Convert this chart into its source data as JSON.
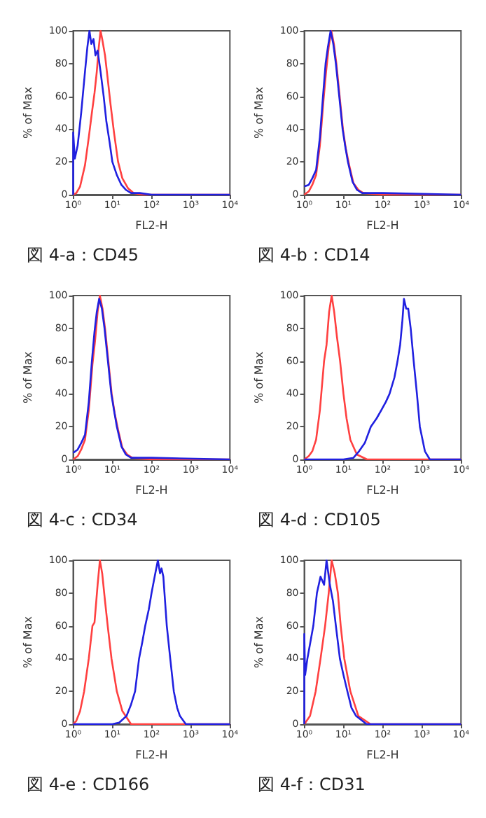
{
  "chart_data": [
    {
      "type": "line",
      "title": "図 4-a：CD45",
      "xlabel": "FL2-H",
      "ylabel": "% of Max",
      "log": "x",
      "marker": "none",
      "line_style": "solid",
      "xlim": [
        1,
        10000
      ],
      "xticks": [
        {
          "value": 1,
          "label": "10⁰"
        },
        {
          "value": 10,
          "label": "10¹"
        },
        {
          "value": 100,
          "label": "10²"
        },
        {
          "value": 1000,
          "label": "10³"
        },
        {
          "value": 10000,
          "label": "10⁴"
        }
      ],
      "ylim": [
        0,
        100
      ],
      "yticks": [
        0,
        20,
        40,
        60,
        80,
        100
      ],
      "series": [
        {
          "color": "#ff4040",
          "x": [
            1,
            1.2,
            1.5,
            2,
            2.5,
            3,
            3.5,
            4,
            4.5,
            5,
            5.5,
            6.5,
            7.5,
            9,
            11,
            14,
            18,
            25,
            35,
            60,
            10000
          ],
          "values": [
            0,
            1,
            5,
            18,
            35,
            50,
            62,
            75,
            90,
            100,
            95,
            85,
            72,
            55,
            38,
            20,
            10,
            4,
            1,
            0,
            0
          ]
        },
        {
          "color": "#2020e0",
          "x": [
            1,
            1,
            1.1,
            1.3,
            1.6,
            2,
            2.3,
            2.6,
            2.9,
            3.3,
            3.7,
            4.2,
            5,
            6,
            7,
            8.5,
            10,
            13,
            17,
            22,
            30,
            50,
            100,
            1000,
            10000
          ],
          "values": [
            0,
            38,
            22,
            30,
            50,
            75,
            90,
            100,
            92,
            95,
            85,
            88,
            75,
            60,
            45,
            32,
            20,
            12,
            6,
            3,
            1,
            1,
            0,
            0,
            0
          ]
        }
      ]
    },
    {
      "type": "line",
      "title": "図 4-b：CD14",
      "xlabel": "FL2-H",
      "ylabel": "% of Max",
      "log": "x",
      "marker": "none",
      "line_style": "solid",
      "xlim": [
        1,
        10000
      ],
      "xticks": [
        {
          "value": 1,
          "label": "10⁰"
        },
        {
          "value": 10,
          "label": "10¹"
        },
        {
          "value": 100,
          "label": "10²"
        },
        {
          "value": 1000,
          "label": "10³"
        },
        {
          "value": 10000,
          "label": "10⁴"
        }
      ],
      "ylim": [
        0,
        100
      ],
      "yticks": [
        0,
        20,
        40,
        60,
        80,
        100
      ],
      "series": [
        {
          "color": "#ff4040",
          "x": [
            1,
            1.3,
            1.6,
            2,
            2.5,
            3.1,
            3.6,
            4.2,
            4.9,
            5.7,
            6.6,
            8,
            9.7,
            11.5,
            14,
            18,
            24,
            32,
            100,
            10000
          ],
          "values": [
            0,
            2,
            6,
            12,
            30,
            58,
            75,
            90,
            100,
            92,
            80,
            60,
            40,
            28,
            18,
            7,
            3,
            1,
            0,
            0
          ]
        },
        {
          "color": "#2020e0",
          "x": [
            1,
            1.3,
            1.6,
            2,
            2.5,
            3,
            3.5,
            4,
            4.7,
            5.5,
            6.4,
            7.8,
            9.5,
            11,
            13,
            17,
            22,
            30,
            100,
            10000
          ],
          "values": [
            5,
            6,
            10,
            15,
            35,
            60,
            80,
            90,
            100,
            92,
            80,
            60,
            40,
            30,
            20,
            8,
            3,
            1,
            1,
            0
          ]
        }
      ]
    },
    {
      "type": "line",
      "title": "図 4-c：CD34",
      "xlabel": "FL2-H",
      "ylabel": "% of Max",
      "log": "x",
      "marker": "none",
      "line_style": "solid",
      "xlim": [
        1,
        10000
      ],
      "xticks": [
        {
          "value": 1,
          "label": "10⁰"
        },
        {
          "value": 10,
          "label": "10¹"
        },
        {
          "value": 100,
          "label": "10²"
        },
        {
          "value": 1000,
          "label": "10³"
        },
        {
          "value": 10000,
          "label": "10⁴"
        }
      ],
      "ylim": [
        0,
        100
      ],
      "yticks": [
        0,
        20,
        40,
        60,
        80,
        100
      ],
      "series": [
        {
          "color": "#ff4040",
          "x": [
            1,
            1.3,
            1.6,
            2,
            2.5,
            3.1,
            3.6,
            4.2,
            4.8,
            5.6,
            6.5,
            7.9,
            9.6,
            11.5,
            14,
            18,
            24,
            32,
            100,
            10000
          ],
          "values": [
            0,
            2,
            6,
            12,
            30,
            58,
            72,
            90,
            100,
            92,
            80,
            60,
            40,
            28,
            18,
            7,
            3,
            1,
            0,
            0
          ]
        },
        {
          "color": "#2020e0",
          "x": [
            1,
            1.3,
            1.6,
            2,
            2.5,
            3,
            3.5,
            4,
            4.6,
            5.4,
            6.3,
            7.7,
            9.4,
            11,
            13,
            17,
            22,
            30,
            100,
            10000
          ],
          "values": [
            4,
            6,
            10,
            15,
            35,
            60,
            78,
            90,
            98,
            92,
            80,
            60,
            40,
            30,
            20,
            8,
            3,
            1,
            1,
            0
          ]
        }
      ]
    },
    {
      "type": "line",
      "title": "図 4-d：CD105",
      "xlabel": "FL2-H",
      "ylabel": "% of Max",
      "log": "x",
      "marker": "none",
      "line_style": "solid",
      "xlim": [
        1,
        10000
      ],
      "xticks": [
        {
          "value": 1,
          "label": "10⁰"
        },
        {
          "value": 10,
          "label": "10¹"
        },
        {
          "value": 100,
          "label": "10²"
        },
        {
          "value": 1000,
          "label": "10³"
        },
        {
          "value": 10000,
          "label": "10⁴"
        }
      ],
      "ylim": [
        0,
        100
      ],
      "yticks": [
        0,
        20,
        40,
        60,
        80,
        100
      ],
      "series": [
        {
          "color": "#ff4040",
          "x": [
            1,
            1.3,
            1.6,
            2,
            2.5,
            3.2,
            3.7,
            4.3,
            5,
            5.8,
            6.8,
            8.2,
            10,
            12,
            15,
            22,
            40,
            10000
          ],
          "values": [
            0,
            2,
            5,
            12,
            30,
            60,
            70,
            90,
            100,
            90,
            75,
            60,
            40,
            25,
            12,
            3,
            0,
            0
          ]
        },
        {
          "color": "#2020e0",
          "x": [
            1,
            10,
            18,
            25,
            35,
            50,
            70,
            92,
            120,
            150,
            200,
            240,
            280,
            320,
            350,
            400,
            450,
            520,
            620,
            750,
            890,
            1200,
            1600,
            10000
          ],
          "values": [
            0,
            0,
            1,
            5,
            10,
            20,
            25,
            30,
            35,
            40,
            50,
            60,
            70,
            85,
            98,
            92,
            92,
            80,
            60,
            40,
            20,
            5,
            0,
            0
          ]
        }
      ]
    },
    {
      "type": "line",
      "title": "図 4-e：CD166",
      "xlabel": "FL2-H",
      "ylabel": "% of Max",
      "log": "x",
      "marker": "none",
      "line_style": "solid",
      "xlim": [
        1,
        10000
      ],
      "xticks": [
        {
          "value": 1,
          "label": "10⁰"
        },
        {
          "value": 10,
          "label": "10¹"
        },
        {
          "value": 100,
          "label": "10²"
        },
        {
          "value": 1000,
          "label": "10³"
        },
        {
          "value": 10000,
          "label": "10⁴"
        }
      ],
      "ylim": [
        0,
        100
      ],
      "yticks": [
        0,
        20,
        40,
        60,
        80,
        100
      ],
      "series": [
        {
          "color": "#ff4040",
          "x": [
            1,
            1.2,
            1.5,
            1.9,
            2.5,
            3.1,
            3.5,
            4.2,
            4.8,
            5.5,
            6.5,
            7.6,
            9.5,
            13,
            18,
            30,
            10000
          ],
          "values": [
            0,
            2,
            8,
            20,
            40,
            60,
            62,
            85,
            100,
            92,
            75,
            60,
            40,
            20,
            8,
            0,
            0
          ]
        },
        {
          "color": "#2020e0",
          "x": [
            1,
            10,
            15,
            23,
            30,
            38,
            48,
            58,
            69,
            85,
            100,
            120,
            145,
            165,
            180,
            200,
            245,
            300,
            370,
            450,
            530,
            750,
            10000
          ],
          "values": [
            0,
            0,
            1,
            5,
            12,
            20,
            40,
            50,
            60,
            70,
            80,
            90,
            100,
            92,
            95,
            90,
            60,
            40,
            20,
            10,
            5,
            0,
            0
          ]
        }
      ]
    },
    {
      "type": "line",
      "title": "図 4-f：CD31",
      "xlabel": "FL2-H",
      "ylabel": "% of Max",
      "log": "x",
      "marker": "none",
      "line_style": "solid",
      "xlim": [
        1,
        10000
      ],
      "xticks": [
        {
          "value": 1,
          "label": "10⁰"
        },
        {
          "value": 10,
          "label": "10¹"
        },
        {
          "value": 100,
          "label": "10²"
        },
        {
          "value": 1000,
          "label": "10³"
        },
        {
          "value": 10000,
          "label": "10⁴"
        }
      ],
      "ylim": [
        0,
        100
      ],
      "yticks": [
        0,
        20,
        40,
        60,
        80,
        100
      ],
      "series": [
        {
          "color": "#ff4040",
          "x": [
            1,
            1.07,
            1.4,
            1.95,
            2.6,
            3.4,
            4.2,
            5,
            6,
            7.2,
            8.5,
            10.5,
            15,
            24,
            49,
            10000
          ],
          "values": [
            0,
            1,
            5,
            20,
            40,
            60,
            80,
            100,
            92,
            80,
            60,
            40,
            20,
            5,
            0,
            0
          ]
        },
        {
          "color": "#2020e0",
          "x": [
            1,
            1,
            1.05,
            1.2,
            1.7,
            2.1,
            2.6,
            3.2,
            3.7,
            4.5,
            5.4,
            6.4,
            8.1,
            10,
            12.6,
            16,
            21,
            39,
            10000
          ],
          "values": [
            0,
            55,
            30,
            40,
            60,
            80,
            90,
            85,
            100,
            85,
            75,
            60,
            40,
            30,
            20,
            10,
            5,
            0,
            0
          ]
        }
      ]
    }
  ]
}
